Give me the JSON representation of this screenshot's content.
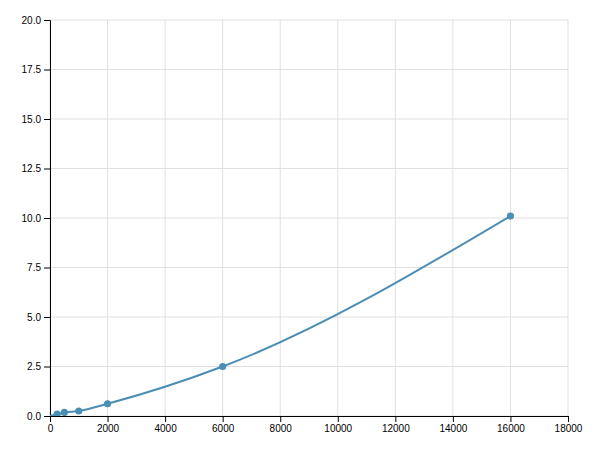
{
  "chart_data": {
    "type": "line",
    "series": [
      {
        "type": "line",
        "x": [
          0,
          250,
          500,
          1000,
          2000,
          6000,
          16000
        ],
        "values": [
          0.0,
          0.1,
          0.18,
          0.25,
          0.62,
          2.5,
          10.1
        ],
        "color": "#4a8db5",
        "line_style": "solid"
      },
      {
        "type": "scatter",
        "x": [
          250,
          500,
          1000,
          2000,
          6000,
          16000
        ],
        "values": [
          0.1,
          0.18,
          0.25,
          0.62,
          2.5,
          10.1
        ],
        "color": "#4a8db5",
        "marker": "circle"
      }
    ],
    "xlim": [
      0,
      18000
    ],
    "ylim": [
      0,
      20
    ],
    "xticks": [
      0,
      2000,
      4000,
      6000,
      8000,
      10000,
      12000,
      14000,
      16000,
      18000
    ],
    "yticks": [
      {
        "value": 0,
        "label": "0.0"
      },
      2.5,
      {
        "value": 5,
        "label": "5.0"
      },
      7.5,
      {
        "value": 10,
        "label": "10.0"
      },
      12.5,
      {
        "value": 15,
        "label": "15.0"
      },
      17.5,
      {
        "value": 20,
        "label": "20.0"
      }
    ],
    "grid": true
  }
}
